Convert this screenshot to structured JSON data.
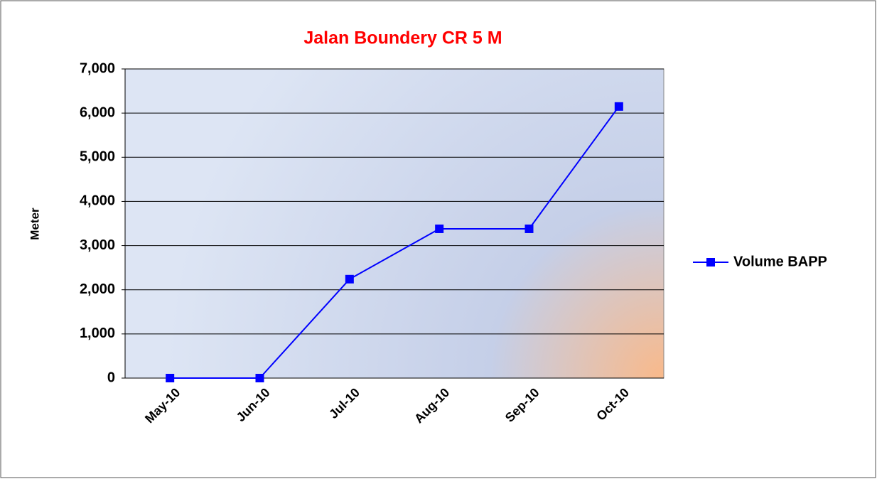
{
  "chart_data": {
    "type": "line",
    "title": "Jalan Boundery CR 5 M",
    "y_label": "Meter",
    "categories": [
      "May-10",
      "Jun-10",
      "Jul-10",
      "Aug-10",
      "Sep-10",
      "Oct-10"
    ],
    "series": [
      {
        "name": "Volume BAPP",
        "color": "#0000ff",
        "values": [
          0,
          0,
          2240,
          3380,
          3380,
          6150
        ]
      }
    ],
    "ylim": [
      0,
      7000
    ],
    "yticks": [
      0,
      {
        "value": 1000,
        "label": "1,000"
      },
      {
        "value": 2000,
        "label": "2,000"
      },
      {
        "value": 3000,
        "label": "3,000"
      },
      {
        "value": 4000,
        "label": "4,000"
      },
      {
        "value": 5000,
        "label": "5,000"
      },
      {
        "value": 6000,
        "label": "6,000"
      },
      {
        "value": 7000,
        "label": "7,000"
      }
    ],
    "grid": true,
    "legend": "right"
  }
}
